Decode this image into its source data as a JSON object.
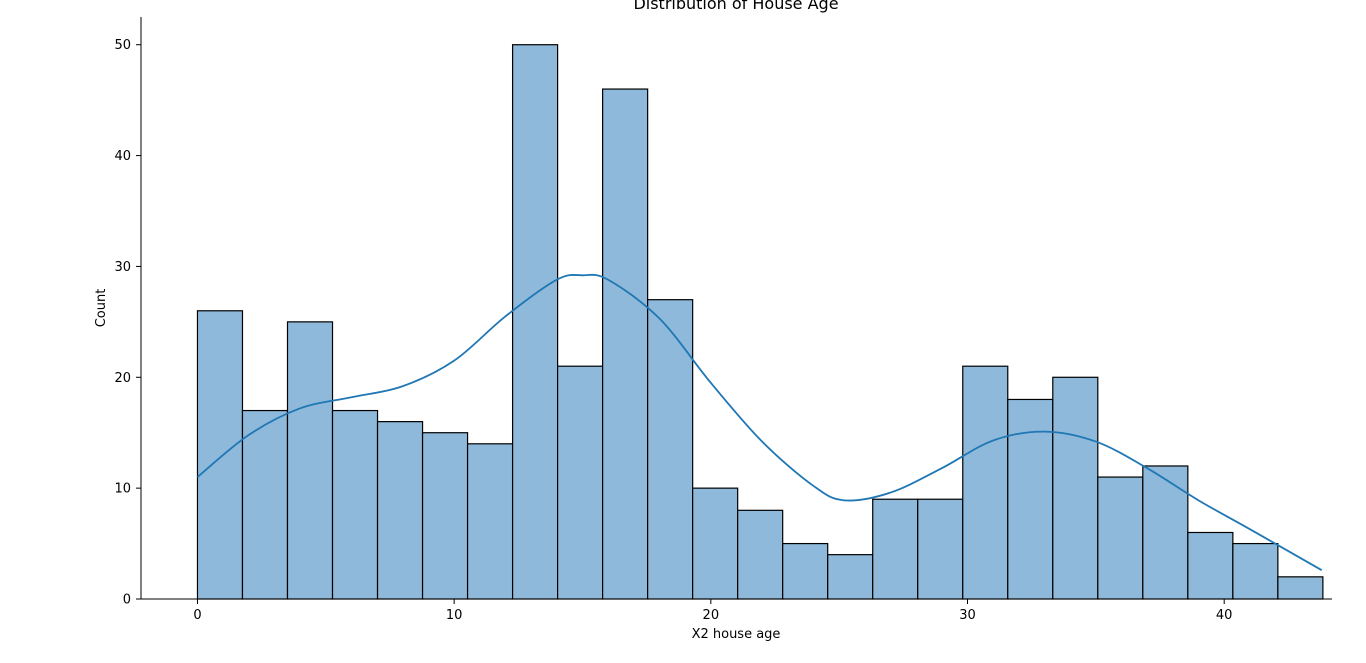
{
  "chart_data": {
    "type": "bar",
    "title": "Distribution of House Age",
    "xlabel": "X2 house age",
    "ylabel": "Count",
    "bin_start": 0,
    "bin_width": 1.7538,
    "values": [
      26,
      17,
      25,
      17,
      16,
      15,
      14,
      50,
      21,
      46,
      27,
      10,
      8,
      5,
      4,
      9,
      9,
      21,
      18,
      20,
      11,
      12,
      6,
      5,
      2
    ],
    "xlim": [
      -2.2,
      44.2
    ],
    "ylim": [
      0,
      52.5
    ],
    "x_ticks": [
      0,
      10,
      20,
      30,
      40
    ],
    "y_ticks": [
      0,
      10,
      20,
      30,
      40,
      50
    ],
    "kde": {
      "x": [
        0,
        2,
        4,
        6,
        8,
        10,
        12,
        14,
        15,
        16,
        18,
        20,
        22,
        24,
        25.2,
        27,
        29,
        31,
        33,
        35,
        37,
        39,
        41,
        43.8
      ],
      "y": [
        11,
        14.8,
        17.2,
        18.2,
        19.2,
        21.5,
        25.5,
        28.8,
        29.2,
        28.8,
        25.3,
        19.5,
        14.2,
        10.2,
        8.9,
        9.6,
        11.8,
        14.3,
        15.1,
        14.2,
        11.8,
        8.9,
        6.3,
        2.6
      ]
    },
    "colors": {
      "bar_fill": "#8eb9da",
      "bar_edge": "#000000",
      "kde_line": "#1f77b4"
    },
    "grid": false,
    "legend": "none"
  }
}
